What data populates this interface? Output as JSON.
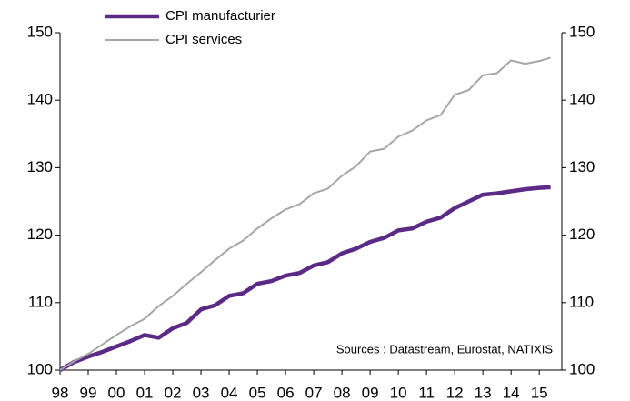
{
  "chart_data": {
    "type": "line",
    "annotation": "Sources : Datastream, Eurostat, NATIXIS",
    "x": [
      1998,
      1998.5,
      1999,
      1999.5,
      2000,
      2000.5,
      2001,
      2001.5,
      2002,
      2002.5,
      2003,
      2003.5,
      2004,
      2004.5,
      2005,
      2005.5,
      2006,
      2006.5,
      2007,
      2007.5,
      2008,
      2008.5,
      2009,
      2009.5,
      2010,
      2010.5,
      2011,
      2011.5,
      2012,
      2012.5,
      2013,
      2013.5,
      2014,
      2014.5,
      2015,
      2015.4
    ],
    "series": [
      {
        "name": "CPI manufacturier",
        "color": "#5b2a86",
        "values": [
          100,
          101.2,
          102,
          102.7,
          103.5,
          104.3,
          105.2,
          104.8,
          106.2,
          107,
          109,
          109.6,
          111,
          111.4,
          112.8,
          113.2,
          114,
          114.4,
          115.5,
          116,
          117.3,
          118,
          119,
          119.6,
          120.7,
          121,
          122,
          122.6,
          124,
          125,
          126,
          126.2,
          126.5,
          126.8,
          127,
          127.1
        ]
      },
      {
        "name": "CPI services",
        "color": "#a6a6a6",
        "values": [
          100,
          101.3,
          102.4,
          103.8,
          105.2,
          106.5,
          107.6,
          109.5,
          111,
          112.8,
          114.5,
          116.3,
          118,
          119.2,
          121,
          122.5,
          123.8,
          124.6,
          126.2,
          126.9,
          128.8,
          130.2,
          132.4,
          132.8,
          134.6,
          135.5,
          137,
          137.8,
          140.8,
          141.5,
          143.7,
          144,
          145.9,
          145.4,
          145.8,
          146.3
        ]
      }
    ],
    "xlim": [
      1998,
      2015.8
    ],
    "xticks": [
      {
        "value": 1998,
        "label": "98"
      },
      {
        "value": 1999,
        "label": "99"
      },
      {
        "value": 2000,
        "label": "00"
      },
      {
        "value": 2001,
        "label": "01"
      },
      {
        "value": 2002,
        "label": "02"
      },
      {
        "value": 2003,
        "label": "03"
      },
      {
        "value": 2004,
        "label": "04"
      },
      {
        "value": 2005,
        "label": "05"
      },
      {
        "value": 2006,
        "label": "06"
      },
      {
        "value": 2007,
        "label": "07"
      },
      {
        "value": 2008,
        "label": "08"
      },
      {
        "value": 2009,
        "label": "09"
      },
      {
        "value": 2010,
        "label": "10"
      },
      {
        "value": 2011,
        "label": "11"
      },
      {
        "value": 2012,
        "label": "12"
      },
      {
        "value": 2013,
        "label": "13"
      },
      {
        "value": 2014,
        "label": "14"
      },
      {
        "value": 2015,
        "label": "15"
      }
    ],
    "ylim": [
      100,
      150
    ],
    "yticks": [
      100,
      110,
      120,
      130,
      140,
      150
    ],
    "y2lim": [
      100,
      150
    ],
    "y2ticks": [
      100,
      110,
      120,
      130,
      140,
      150
    ],
    "legend": "top-left",
    "grid": false
  }
}
